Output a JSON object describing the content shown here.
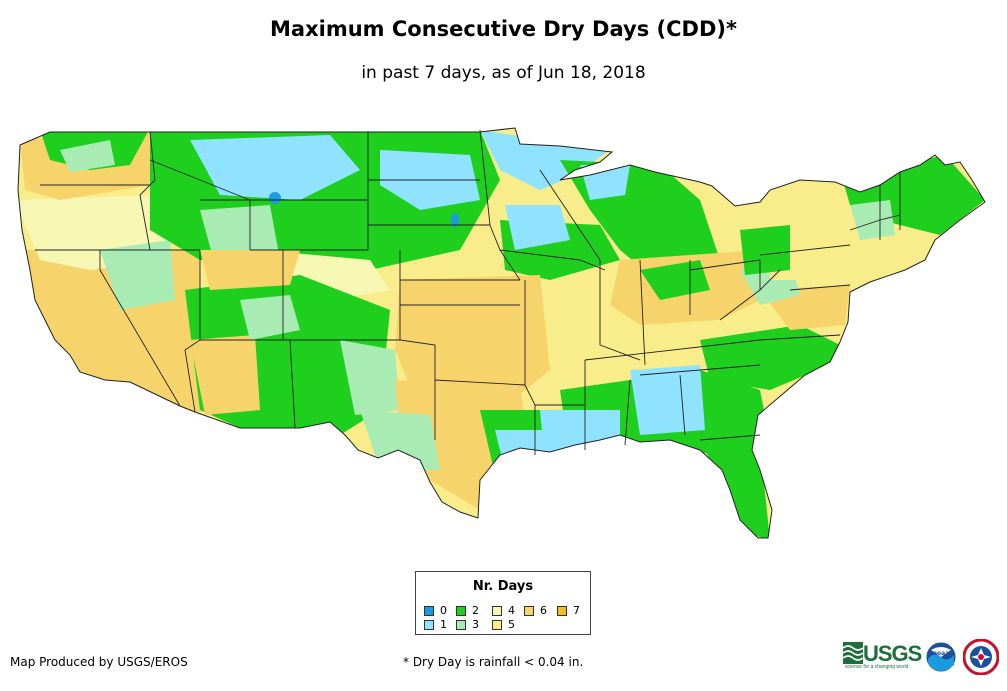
{
  "header": {
    "title": "Maximum Consecutive Dry Days (CDD)*",
    "subtitle": "in past 7 days, as of Jun 18, 2018"
  },
  "map": {
    "region": "Contiguous United States",
    "palette": {
      "0": "#1a9be0",
      "1": "#8fe3ff",
      "2": "#1ecf1e",
      "3": "#a8ecb4",
      "4": "#f7f7b4",
      "5": "#f9ec8a",
      "6": "#f7d46b",
      "7": "#f5bd1f"
    }
  },
  "legend": {
    "title": "Nr. Days",
    "items": [
      {
        "label": "0",
        "color": "#1a9be0"
      },
      {
        "label": "1",
        "color": "#8fe3ff"
      },
      {
        "label": "2",
        "color": "#1ecf1e"
      },
      {
        "label": "3",
        "color": "#a8ecb4"
      },
      {
        "label": "4",
        "color": "#f7f7b4"
      },
      {
        "label": "5",
        "color": "#f9ec8a"
      },
      {
        "label": "6",
        "color": "#f7d46b"
      },
      {
        "label": "7",
        "color": "#f5bd1f"
      }
    ]
  },
  "footer": {
    "credit": "Map Produced by USGS/EROS",
    "footnote": "* Dry Day is rainfall < 0.04 in."
  },
  "logos": {
    "usgs": "USGS",
    "usgs_tagline": "science for a changing world",
    "noaa": "noaa",
    "nws": "NATIONAL WEATHER SERVICE"
  }
}
